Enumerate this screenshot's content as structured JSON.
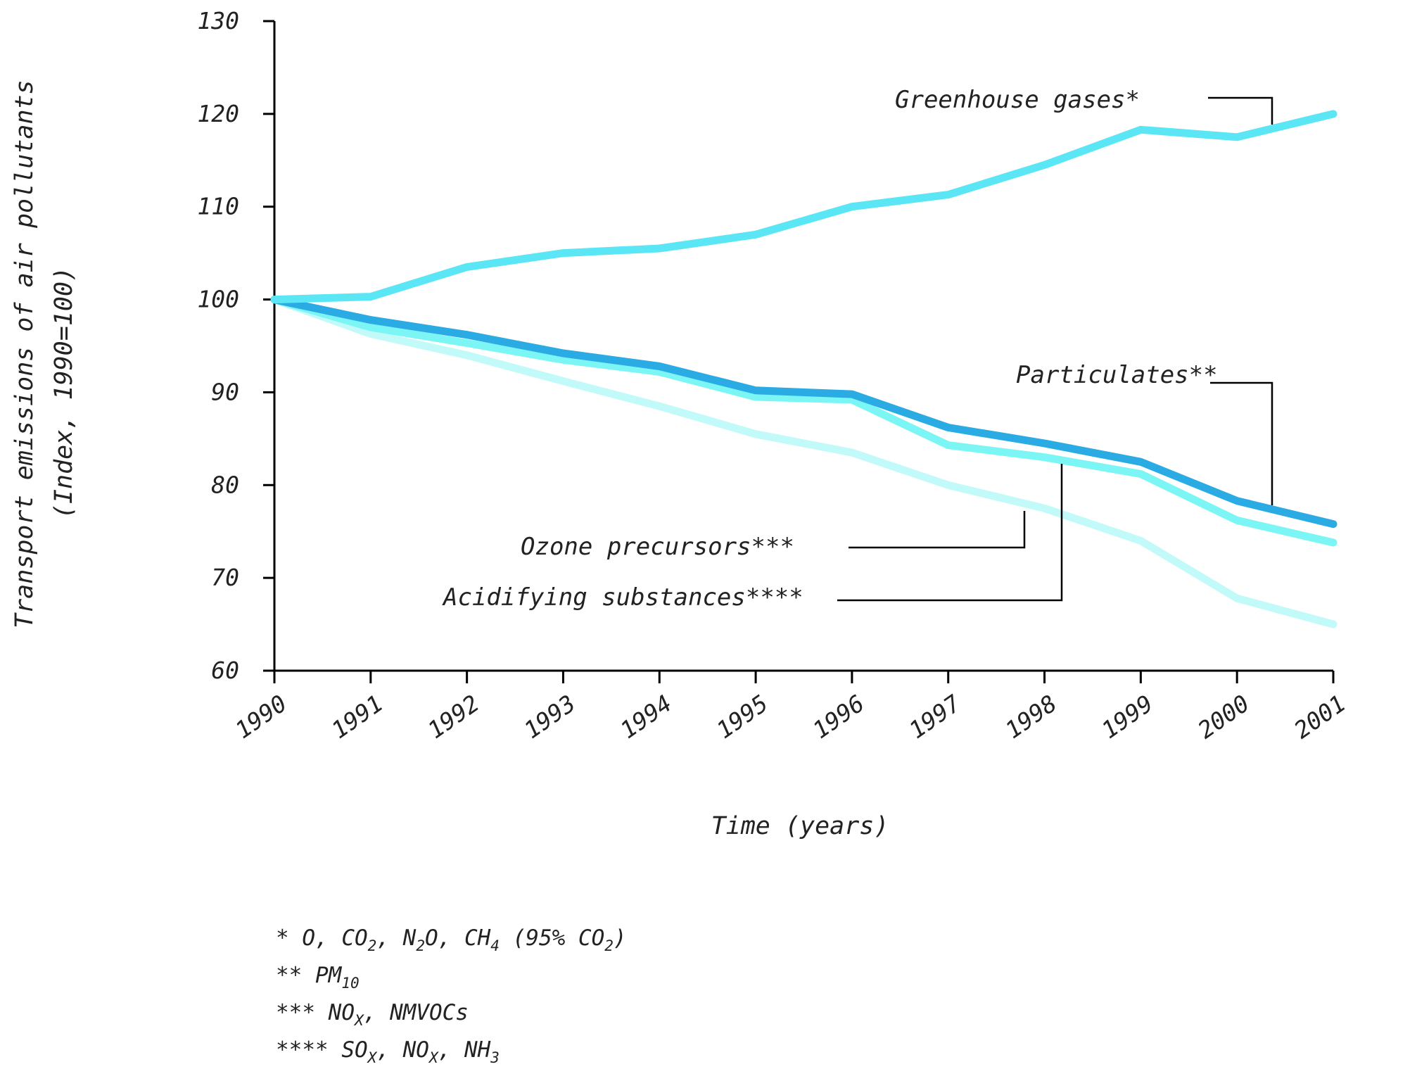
{
  "chart_data": {
    "type": "line",
    "ylabel_line1": "Transport emissions of air pollutants",
    "ylabel_line2": "(Index, 1990=100)",
    "xlabel": "Time (years)",
    "ylim": [
      60,
      130
    ],
    "yticks": [
      "60",
      "70",
      "80",
      "90",
      "100",
      "110",
      "120",
      "130"
    ],
    "categories": [
      "1990",
      "1991",
      "1992",
      "1993",
      "1994",
      "1995",
      "1996",
      "1997",
      "1998",
      "1999",
      "2000",
      "2001"
    ],
    "grid": false,
    "series": [
      {
        "name": "Greenhouse gases*",
        "color": "#5BE6F5",
        "values": [
          100,
          100.3,
          103.5,
          105,
          105.5,
          107,
          110,
          111.3,
          114.5,
          118.3,
          117.5,
          120
        ]
      },
      {
        "name": "Particulates**",
        "color": "#2AABE4",
        "values": [
          100,
          97.8,
          96.2,
          94.2,
          92.8,
          90.2,
          89.8,
          86.2,
          84.5,
          82.5,
          78.3,
          75.8
        ]
      },
      {
        "name": "Ozone precursors***",
        "color": "#7CF5F5",
        "values": [
          100,
          97,
          95.3,
          93.5,
          92.2,
          89.5,
          89.2,
          84.3,
          83,
          81.2,
          76.2,
          73.8
        ]
      },
      {
        "name": "Acidifying substances****",
        "color": "#C2FAFA",
        "values": [
          100,
          96.3,
          94,
          91.2,
          88.5,
          85.5,
          83.5,
          80,
          77.5,
          74,
          67.8,
          65
        ]
      }
    ]
  },
  "footnotes": {
    "f1": {
      "prefix": "* ",
      "t1": "O, CO",
      "s1": "2",
      "t2": ", N",
      "s2": "2",
      "t3": "O, CH",
      "s3": "4",
      "t4": " (95% CO",
      "s4": "2",
      "t5": ")"
    },
    "f2": {
      "prefix": "** ",
      "t1": "PM",
      "s1": "10"
    },
    "f3": {
      "prefix": "*** ",
      "t1": "NO",
      "s1": "X",
      "t2": ", NMVOCs"
    },
    "f4": {
      "prefix": "**** ",
      "t1": "SO",
      "s1": "X",
      "t2": ", NO",
      "s2": "X",
      "t3": ", NH",
      "s3": "3"
    }
  }
}
